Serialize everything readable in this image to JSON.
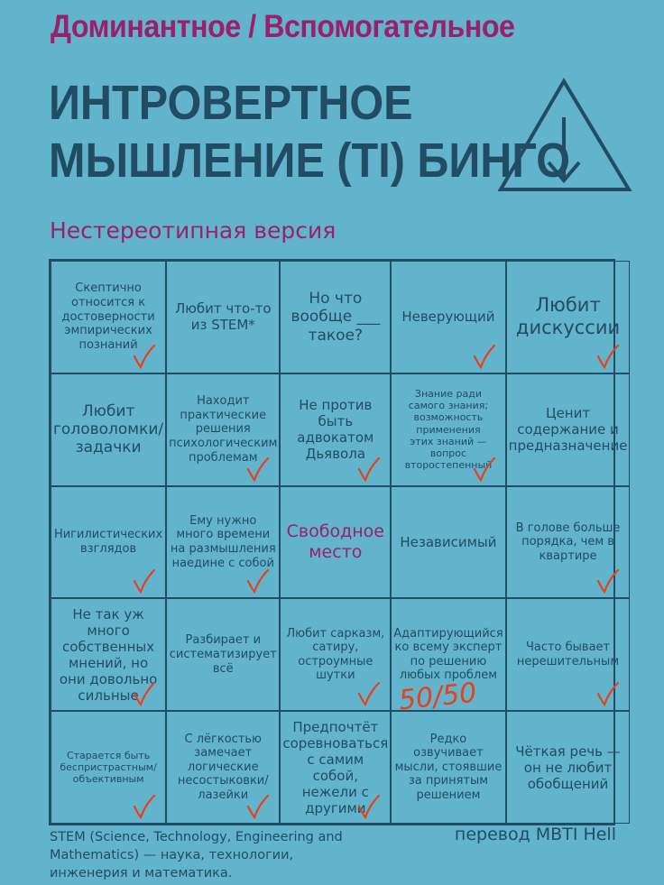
{
  "supertitle": "Доминантное / Вспомогательное",
  "title_line1": "ИНТРОВЕРТНОЕ",
  "title_line2": "МЫШЛЕНИЕ (TI) БИНГО",
  "symbol_icon": "triangle-down-arrow-icon",
  "subtitle": "Нестереотипная версия",
  "colors": {
    "background": "#62b4cd",
    "accent": "#9a1f6c",
    "text": "#224b64",
    "check": "#e8401c"
  },
  "cells": [
    {
      "text": "Скептично\nотносится к\nдостоверности\nэмпирических\nпознаний",
      "size": "s1",
      "checked": true
    },
    {
      "text": "Любит что-то\nиз STEM*",
      "size": "s2",
      "checked": false
    },
    {
      "text": "Но что\nвообще ___\nтакое?",
      "size": "s3",
      "checked": false
    },
    {
      "text": "Неверующий",
      "size": "s2",
      "checked": true
    },
    {
      "text": "Любит\nдискуссии",
      "size": "s4",
      "checked": true
    },
    {
      "text": "Любит\nголоволомки/\nзадачки",
      "size": "s3",
      "checked": false
    },
    {
      "text": "Находит\nпрактические\nрешения\nпсихологическим\nпроблемам",
      "size": "s1",
      "checked": true
    },
    {
      "text": "Не против\nбыть адвокатом\nДьявола",
      "size": "s2",
      "checked": true
    },
    {
      "text": "Знание ради\nсамого знания;\nвозможность\nприменения\nэтих знаний —\nвопрос\nвторостепенный",
      "size": "s0",
      "checked": true
    },
    {
      "text": "Ценит\nсодержание и\nпредназначение",
      "size": "s2",
      "checked": false
    },
    {
      "text": "Нигилистических\nвзглядов",
      "size": "s1",
      "checked": true
    },
    {
      "text": "Ему нужно\nмного времени\nна размышления\nнаедине с собой",
      "size": "s1",
      "checked": true
    },
    {
      "text": "Свободное\nместо",
      "size": "free",
      "checked": false
    },
    {
      "text": "Независимый",
      "size": "s2",
      "checked": false
    },
    {
      "text": "В голове больше\nпорядка, чем в\nквартире",
      "size": "s1",
      "checked": true
    },
    {
      "text": "Не так уж\nмного\nсобственных\nмнений, но\nони довольно\nсильные",
      "size": "s2",
      "checked": true
    },
    {
      "text": "Разбирает и\nсистематизирует\nвсё",
      "size": "s1",
      "checked": false
    },
    {
      "text": "Любит сарказм,\nсатиру,\nостроумные\nшутки",
      "size": "s1",
      "checked": true
    },
    {
      "text": "Адаптирующийся\nко всему эксперт\nпо решению\nлюбых проблем",
      "size": "s1",
      "checked": false,
      "note": "50/50"
    },
    {
      "text": "Часто бывает\nнерешительным",
      "size": "s1",
      "checked": true
    },
    {
      "text": "Старается быть\nбеспристрастным/\nобъективным",
      "size": "s0",
      "checked": true
    },
    {
      "text": "С лёгкостью\nзамечает\nлогические\nнесостыковки/\nлазейки",
      "size": "s1",
      "checked": true
    },
    {
      "text": "Предпочтёт\nсоревноваться\nс самим собой,\nнежели с\nдругими",
      "size": "s2",
      "checked": true
    },
    {
      "text": "Редко озвучивает\nмысли, стоявшие\nза принятым\nрешением",
      "size": "s1",
      "checked": false
    },
    {
      "text": "Чёткая речь —\nон не любит\nобобщений",
      "size": "s2",
      "checked": false
    }
  ],
  "footnote": "STEM (Science, Technology, Engineering and Mathematics) — наука, технологии, инженерия и математика.",
  "credit": "перевод MBTI Hell"
}
